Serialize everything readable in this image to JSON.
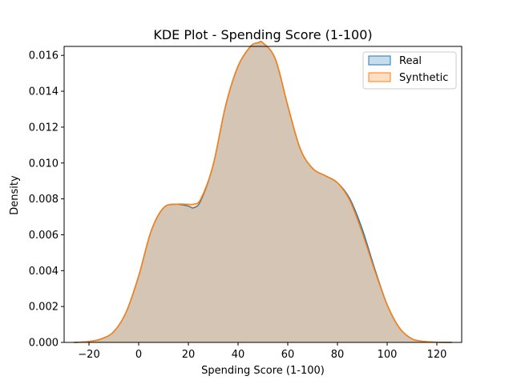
{
  "chart_data": {
    "type": "area",
    "title": "KDE Plot - Spending Score (1-100)",
    "xlabel": "Spending Score (1-100)",
    "ylabel": "Density",
    "xlim": [
      -30,
      130
    ],
    "ylim": [
      0,
      0.0165
    ],
    "xticks": [
      -20,
      0,
      20,
      40,
      60,
      80,
      100,
      120
    ],
    "xtick_labels": [
      "−20",
      "0",
      "20",
      "40",
      "60",
      "80",
      "100",
      "120"
    ],
    "yticks": [
      0,
      0.002,
      0.004,
      0.006,
      0.008,
      0.01,
      0.012,
      0.014,
      0.016
    ],
    "ytick_labels": [
      "0.000",
      "0.002",
      "0.004",
      "0.006",
      "0.008",
      "0.010",
      "0.012",
      "0.014",
      "0.016"
    ],
    "grid": false,
    "legend_position": "top-right",
    "series": [
      {
        "name": "Real",
        "color": "#1f77b4",
        "fill_color": "#1f77b4",
        "x": [
          -26,
          -20,
          -15,
          -10,
          -5,
          0,
          5,
          10,
          15,
          20,
          22,
          25,
          30,
          35,
          40,
          45,
          48,
          50,
          55,
          60,
          65,
          70,
          75,
          80,
          85,
          90,
          95,
          100,
          105,
          110,
          115,
          120,
          126
        ],
        "y": [
          0.0,
          5e-05,
          0.0002,
          0.0006,
          0.0017,
          0.0037,
          0.0062,
          0.0075,
          0.0077,
          0.0076,
          0.0075,
          0.0079,
          0.0099,
          0.0132,
          0.0154,
          0.0165,
          0.0167,
          0.0167,
          0.0158,
          0.0132,
          0.0108,
          0.0097,
          0.0093,
          0.0089,
          0.008,
          0.0063,
          0.0041,
          0.0021,
          0.0008,
          0.0002,
          5e-05,
          1e-05,
          0.0
        ]
      },
      {
        "name": "Synthetic",
        "color": "#ff7f0e",
        "fill_color": "#ff7f0e",
        "x": [
          -26,
          -20,
          -15,
          -10,
          -5,
          0,
          5,
          10,
          15,
          20,
          22,
          25,
          30,
          35,
          40,
          45,
          48,
          50,
          55,
          60,
          65,
          70,
          75,
          80,
          85,
          90,
          95,
          100,
          105,
          110,
          115,
          120,
          126
        ],
        "y": [
          0.0,
          5e-05,
          0.0002,
          0.0006,
          0.0017,
          0.0037,
          0.0062,
          0.0075,
          0.0077,
          0.0077,
          0.0077,
          0.008,
          0.0099,
          0.0132,
          0.0154,
          0.0165,
          0.0167,
          0.0167,
          0.0158,
          0.0132,
          0.0108,
          0.0097,
          0.0093,
          0.0089,
          0.0079,
          0.0061,
          0.004,
          0.0021,
          0.0008,
          0.0002,
          5e-05,
          1e-05,
          0.0
        ]
      }
    ]
  }
}
